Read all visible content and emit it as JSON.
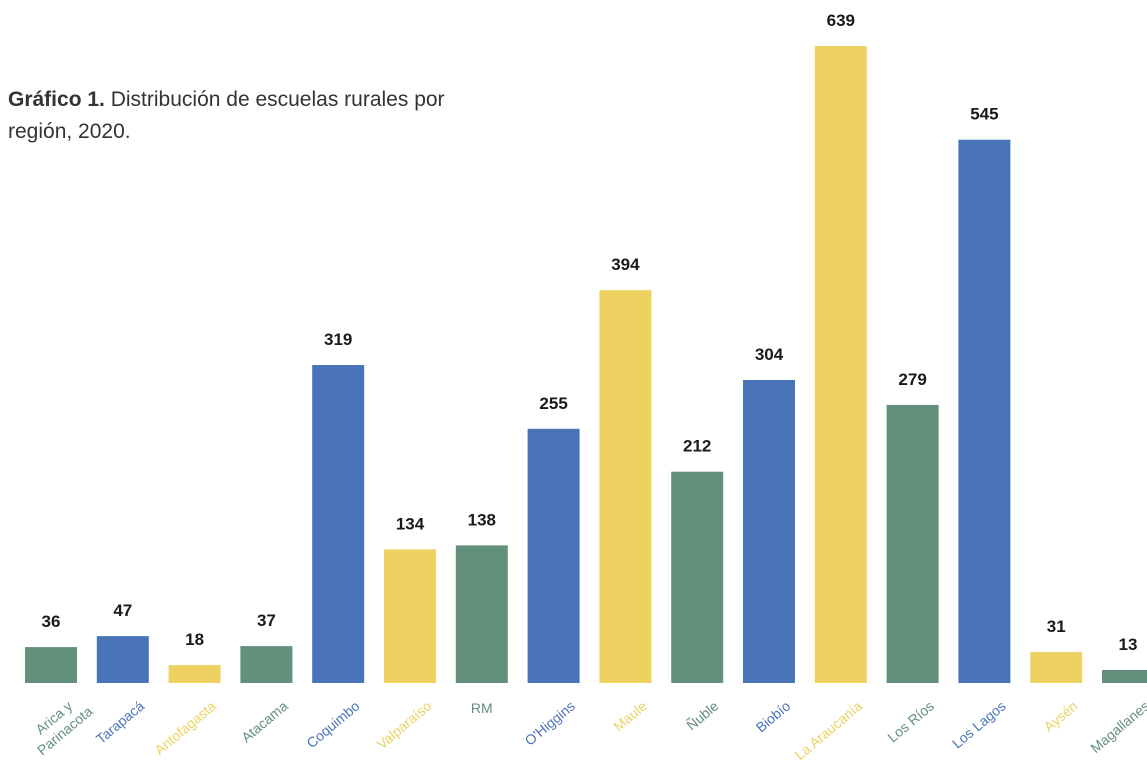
{
  "title": {
    "prefix": "Gráfico 1.",
    "text": "Distribución de escuelas rurales por región, 2020."
  },
  "colors": {
    "green": "#62907A",
    "blue": "#4A74B8",
    "yellow": "#EDD262",
    "value_label": "#1A1A1A"
  },
  "chart_data": {
    "type": "bar",
    "title": "Gráfico 1. Distribución de escuelas rurales por región, 2020.",
    "xlabel": "",
    "ylabel": "",
    "ylim": [
      0,
      639
    ],
    "grid": false,
    "categories": [
      "Arica y Parinacota",
      "Tarapacá",
      "Antofagasta",
      "Atacama",
      "Coquimbo",
      "Valparaíso",
      "RM",
      "O'Higgins",
      "Maule",
      "Ñuble",
      "Biobío",
      "La Araucanía",
      "Los Ríos",
      "Los Lagos",
      "Aysén",
      "Magallanes"
    ],
    "values": [
      36,
      47,
      18,
      37,
      319,
      134,
      138,
      255,
      394,
      212,
      304,
      639,
      279,
      545,
      31,
      13
    ],
    "bar_colors": [
      "green",
      "blue",
      "yellow",
      "green",
      "blue",
      "yellow",
      "green",
      "blue",
      "yellow",
      "green",
      "blue",
      "yellow",
      "green",
      "blue",
      "yellow",
      "green"
    ]
  }
}
